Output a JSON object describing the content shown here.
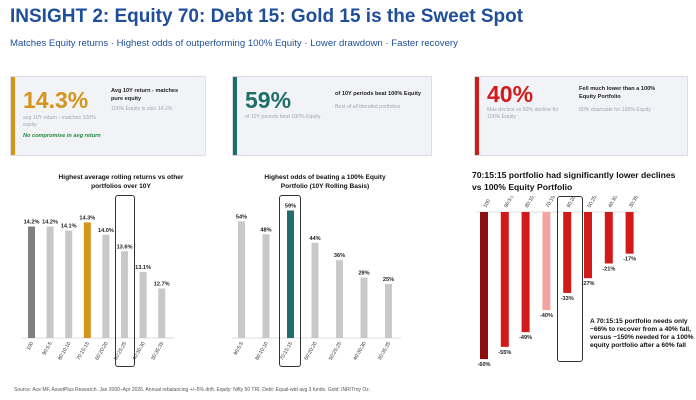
{
  "header": {
    "title": "INSIGHT 2: Equity 70: Debt 15: Gold 15 is the Sweet Spot",
    "subtitle": "Matches Equity returns · Highest odds of outperforming 100% Equity · Lower drawdown · Faster recovery"
  },
  "cards": [
    {
      "value": "14.3%",
      "accent": "#d4951a",
      "heading": "Avg 10Y return - matches pure equity",
      "note_left": "avg 10Y return - matches 100% equity",
      "note_right": "100% Equity is also 14.2%",
      "highlight": "No compromise in avg return"
    },
    {
      "value": "59%",
      "accent": "#1f6e6a",
      "heading": "of 10Y periods beat 100% Equity",
      "note_left": "of 10Y periods beat 100% Equity",
      "note_right": "Best of all blended portfolios"
    },
    {
      "value": "40%",
      "accent": "#d11a1a",
      "heading": "Fell much lower than a 100% Equity Portfolio",
      "note_left": "Max decline vs 60% decline for 100% Equity",
      "note_right": "60% downside for 100% Equity"
    }
  ],
  "chart_data": [
    {
      "type": "bar",
      "title": "Highest average rolling returns vs other portfolios over 10Y",
      "categories": [
        "100",
        "90:5:5",
        "80:10:10",
        "70:15:15",
        "60:20:20",
        "50:25:25",
        "40:30:30",
        "30:35:35"
      ],
      "values": [
        14.2,
        14.2,
        14.1,
        14.3,
        14.0,
        13.6,
        13.1,
        12.7
      ],
      "labels": [
        "14.2%",
        "14.2%",
        "14.1%",
        "14.3%",
        "14.0%",
        "13.6%",
        "13.1%",
        "12.7%"
      ],
      "ylim": [
        11.5,
        14.6
      ],
      "colors": {
        "base": "#c8c8c8",
        "first": "#808080",
        "highlight": "#d4951a"
      },
      "highlight_index": 3
    },
    {
      "type": "bar",
      "title": "Highest odds of beating a 100% Equity Portfolio (10Y Rolling Basis)",
      "categories": [
        "90:5:5",
        "80:10:10",
        "70:15:15",
        "60:20:20",
        "50:25:25",
        "40:30:30",
        "30:35:35"
      ],
      "values": [
        54,
        48,
        59,
        44,
        36,
        28,
        25
      ],
      "labels": [
        "54%",
        "48%",
        "59%",
        "44%",
        "36%",
        "28%",
        "25%"
      ],
      "ylim": [
        0,
        62
      ],
      "colors": {
        "base": "#c8c8c8",
        "highlight": "#1f6e6a"
      },
      "highlight_index": 2
    },
    {
      "type": "bar",
      "title": "70:15:15 portfolio had significantly lower declines vs 100% Equity Portfolio",
      "categories": [
        "100",
        "90:5:5",
        "80:10:10",
        "70:15:15",
        "60:20:20",
        "50:25:25",
        "40:30:30",
        "30:35:35"
      ],
      "values": [
        -60,
        -55,
        -49,
        -40,
        -33,
        -27,
        -21,
        -17
      ],
      "labels": [
        "-60%",
        "-55%",
        "-49%",
        "-40%",
        "-33%",
        "-27%",
        "-21%",
        "-17%"
      ],
      "ylim": [
        -62,
        0
      ],
      "colors": {
        "base": "#d11a1a",
        "first": "#8b1010",
        "highlight": "#f4a3a3"
      },
      "highlight_index": 3,
      "annotation": "A 70:15:15 portfolio needs only ~66% to recover from a 40% fall, versus ~150% needed for a 100% equity portfolio after a 60% fall"
    }
  ],
  "footer": {
    "source": "Source: Ace MF, AssetPlus Research. Jan 2000–Apr 2026. Annual rebalancing +/–5% drift. Equity: Nifty 50 TRI. Debt: Equal-wtd avg 3 funds. Gold: INR/Troy Oz."
  }
}
